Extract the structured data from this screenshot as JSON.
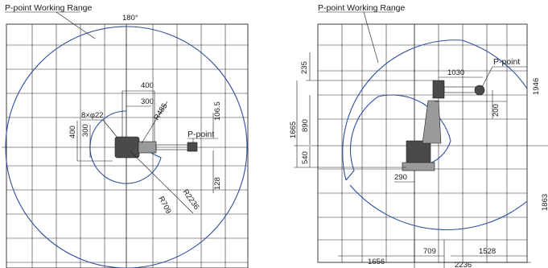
{
  "left_view": {
    "title": "P-point Working Range",
    "angle_label": "180°",
    "point_label": "P-point",
    "dims": {
      "d400_top": "400",
      "d300_top": "300",
      "holes": "8×φ22",
      "r485": "R485",
      "d106_5": "106.5",
      "d400_left": "400",
      "d300_left": "300",
      "d128": "128",
      "r709": "R709",
      "r2236": "R2236"
    }
  },
  "right_view": {
    "title": "P-point Working Range",
    "point_label": "P-point",
    "dims": {
      "d235": "235",
      "d1030": "1030",
      "d1946": "1946",
      "d200": "200",
      "d1665": "1665",
      "d890": "890",
      "d540": "540",
      "d290": "290",
      "d1863": "1863",
      "d1656": "1656",
      "d709": "709",
      "d1528": "1528",
      "d2236": "2236"
    }
  }
}
